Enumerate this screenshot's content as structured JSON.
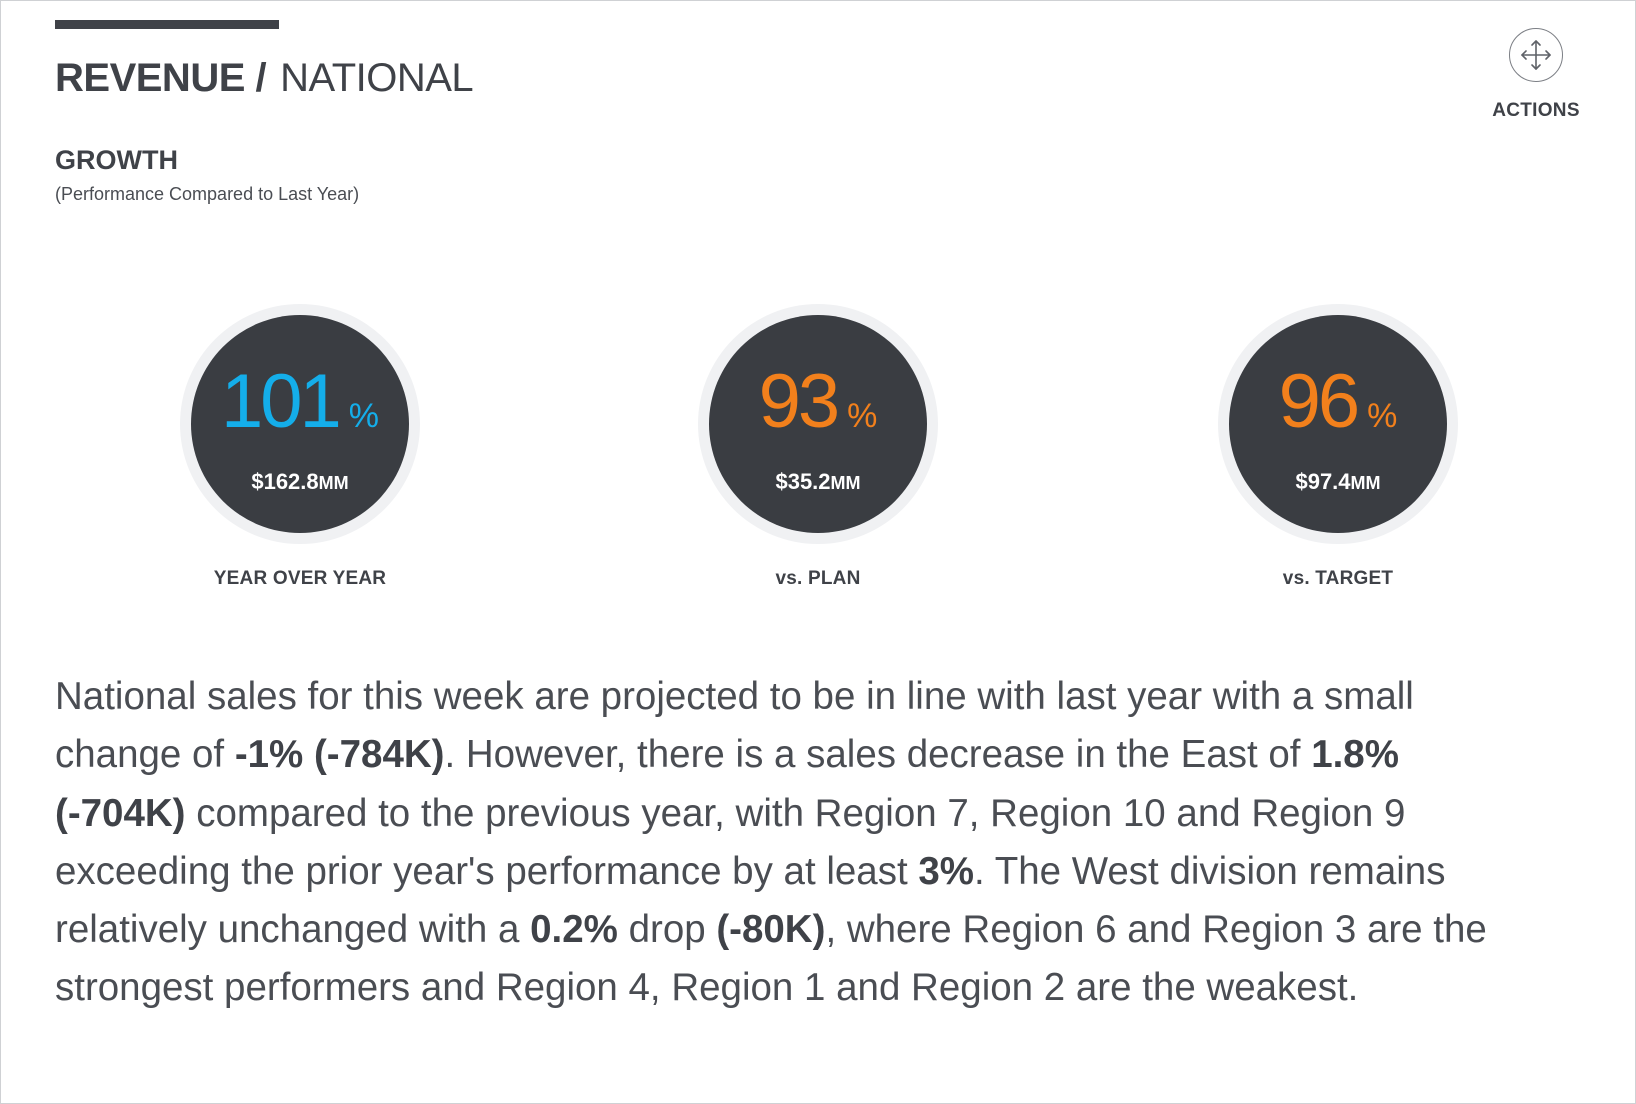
{
  "header": {
    "title_main": "REVENUE /",
    "title_sub": "NATIONAL"
  },
  "actions": {
    "label": "ACTIONS",
    "icon": "move-arrows-icon"
  },
  "section": {
    "title": "GROWTH",
    "subtitle": "(Performance Compared to Last Year)"
  },
  "colors": {
    "positive": "#14aeea",
    "negative": "#f2801c"
  },
  "metrics": [
    {
      "value": "101",
      "unit": "%",
      "amount": "$162.8",
      "amount_unit": "MM",
      "label": "YEAR OVER YEAR",
      "status": "positive"
    },
    {
      "value": "93",
      "unit": "%",
      "amount": "$35.2",
      "amount_unit": "MM",
      "label": "vs. PLAN",
      "status": "negative"
    },
    {
      "value": "96",
      "unit": "%",
      "amount": "$97.4",
      "amount_unit": "MM",
      "label": "vs. TARGET",
      "status": "negative"
    }
  ],
  "narrative": {
    "t1": "National sales for this week are projected to be in line with last year with a small change of ",
    "b1": "-1% (-784K)",
    "t2": ". However, there is a sales decrease in the East of ",
    "b2": "1.8% (-704K)",
    "t3": " compared to the previous year, with Region 7, Region 10 and Region 9 exceeding the prior year's performance by at least ",
    "b3": "3%",
    "t4": ". The West division remains relatively unchanged with a ",
    "b4": "0.2%",
    "t5": " drop ",
    "b5": "(-80K)",
    "t6": ", where Region 6 and Region 3 are the strongest performers and Region 4, Region 1 and Region 2 are the weakest."
  }
}
